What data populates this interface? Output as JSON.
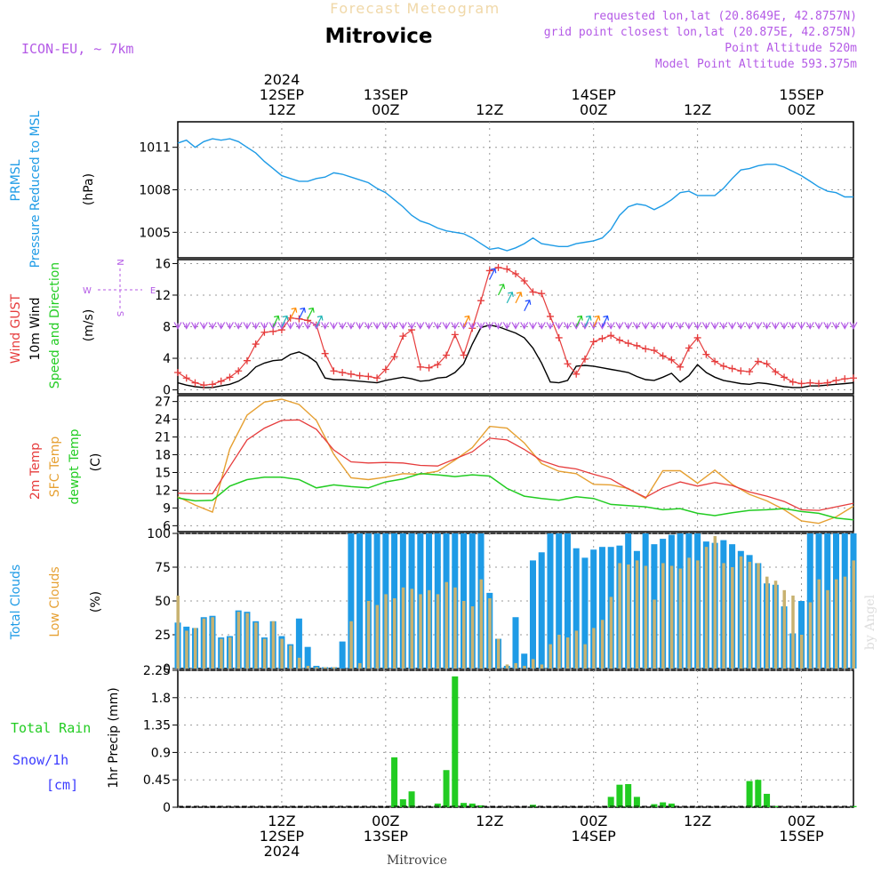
{
  "header": {
    "forecast_title": "Forecast Meteogram",
    "station": "Mitrovice",
    "model": "ICON-EU, ~ 7km",
    "requested": "requested lon,lat (20.8649E, 42.8757N)",
    "grid": "grid point closest lon,lat (20.875E, 42.875N)",
    "point_alt": "Point Altitude 520m",
    "model_alt": "Model Point Altitude 593.375m",
    "footer_station": "Mitrovice",
    "credit": "by Angel"
  },
  "colors": {
    "pressure": "#1E9BE6",
    "gust": "#E63C3C",
    "wind": "#000000",
    "arrow_dir": "#22CC22",
    "t2m": "#E63C3C",
    "tsfc": "#E6A032",
    "dewpt": "#22CC22",
    "total_clouds": "#1E9BE6",
    "low_clouds": "#C8B270",
    "rain": "#22CC22",
    "snow": "#3C3CFF",
    "purple": "#B45AE6",
    "grid": "#999999"
  },
  "time_axis": {
    "top_labels": [
      {
        "h": 12,
        "lines": [
          "2024",
          "12SEP",
          "12Z"
        ]
      },
      {
        "h": 24,
        "lines": [
          "13SEP",
          "00Z"
        ]
      },
      {
        "h": 36,
        "lines": [
          "12Z"
        ]
      },
      {
        "h": 48,
        "lines": [
          "14SEP",
          "00Z"
        ]
      },
      {
        "h": 60,
        "lines": [
          "12Z"
        ]
      },
      {
        "h": 72,
        "lines": [
          "15SEP",
          "00Z"
        ]
      }
    ],
    "bottom_labels": [
      {
        "h": 12,
        "lines": [
          "12Z",
          "12SEP",
          "2024"
        ]
      },
      {
        "h": 24,
        "lines": [
          "00Z",
          "13SEP"
        ]
      },
      {
        "h": 36,
        "lines": [
          "12Z"
        ]
      },
      {
        "h": 48,
        "lines": [
          "00Z",
          "14SEP"
        ]
      },
      {
        "h": 60,
        "lines": [
          "12Z"
        ]
      },
      {
        "h": 72,
        "lines": [
          "00Z",
          "15SEP"
        ]
      }
    ]
  },
  "panels": {
    "pressure": {
      "labels": [
        "PRMSL",
        "Pressure Reduced to MSL",
        "(hPa)"
      ],
      "ticks": [
        "1011",
        "1008",
        "1005"
      ]
    },
    "wind": {
      "labels": [
        "Wind GUST",
        "10m Wind",
        "Speed and Direction",
        "(m/s)"
      ],
      "ticks": [
        "16",
        "12",
        "8",
        "4",
        "0"
      ],
      "compass": {
        "n": "N",
        "s": "S",
        "w": "W",
        "e": "E"
      }
    },
    "temp": {
      "labels": [
        "2m Temp",
        "SFC Temp",
        "dewpt Temp",
        "(C)"
      ],
      "ticks": [
        "27",
        "24",
        "21",
        "18",
        "15",
        "12",
        "9",
        "6"
      ]
    },
    "clouds": {
      "labels": [
        "Total Clouds",
        "Low Clouds",
        "(%)"
      ],
      "ticks": [
        "100",
        "75",
        "50",
        "25",
        "0"
      ]
    },
    "precip": {
      "labels": [
        "Total Rain",
        "Snow/1h",
        "[cm]",
        "1hr Precip (mm)"
      ],
      "ticks": [
        "2.25",
        "1.8",
        "1.35",
        "0.9",
        "0.45",
        "0"
      ]
    }
  },
  "chart_data": {
    "type": "line",
    "x_unit": "hours from 12 SEP 2024 00Z",
    "x_range": [
      0,
      78
    ],
    "series": [
      {
        "name": "PRMSL",
        "ylim": [
          1003.2,
          1012.8
        ],
        "x": [
          0,
          1,
          2,
          3,
          4,
          5,
          6,
          7,
          8,
          9,
          10,
          11,
          12,
          13,
          14,
          15,
          16,
          17,
          18,
          19,
          20,
          21,
          22,
          23,
          24,
          25,
          26,
          27,
          28,
          29,
          30,
          31,
          32,
          33,
          34,
          35,
          36,
          37,
          38,
          39,
          40,
          41,
          42,
          43,
          44,
          45,
          46,
          47,
          48,
          49,
          50,
          51,
          52,
          53,
          54,
          55,
          56,
          57,
          58,
          59,
          60,
          61,
          62,
          63,
          64,
          65,
          66,
          67,
          68,
          69,
          70,
          71,
          72,
          73,
          74,
          75,
          76,
          77,
          78
        ],
        "values": [
          1011.3,
          1011.5,
          1011.0,
          1011.4,
          1011.6,
          1011.5,
          1011.6,
          1011.4,
          1011.0,
          1010.6,
          1010.0,
          1009.5,
          1009.0,
          1008.8,
          1008.6,
          1008.6,
          1008.8,
          1008.9,
          1009.2,
          1009.1,
          1008.9,
          1008.7,
          1008.5,
          1008.1,
          1007.8,
          1007.3,
          1006.8,
          1006.2,
          1005.8,
          1005.6,
          1005.3,
          1005.1,
          1005.0,
          1004.9,
          1004.6,
          1004.2,
          1003.8,
          1003.9,
          1003.7,
          1003.9,
          1004.2,
          1004.6,
          1004.2,
          1004.1,
          1004.0,
          1004.0,
          1004.2,
          1004.3,
          1004.4,
          1004.6,
          1005.2,
          1006.2,
          1006.8,
          1007.0,
          1006.9,
          1006.6,
          1006.9,
          1007.3,
          1007.8,
          1007.9,
          1007.6,
          1007.6,
          1007.6,
          1008.1,
          1008.8,
          1009.4,
          1009.5,
          1009.7,
          1009.8,
          1009.8,
          1009.6,
          1009.3,
          1009.0,
          1008.6,
          1008.2,
          1007.9,
          1007.8,
          1007.5,
          1007.5
        ]
      },
      {
        "name": "Wind GUST",
        "ylim": [
          -0.5,
          16.5
        ],
        "x": [
          0,
          1,
          2,
          3,
          4,
          5,
          6,
          7,
          8,
          9,
          10,
          11,
          12,
          13,
          14,
          15,
          16,
          17,
          18,
          19,
          20,
          21,
          22,
          23,
          24,
          25,
          26,
          27,
          28,
          29,
          30,
          31,
          32,
          33,
          34,
          35,
          36,
          37,
          38,
          39,
          40,
          41,
          42,
          43,
          44,
          45,
          46,
          47,
          48,
          49,
          50,
          51,
          52,
          53,
          54,
          55,
          56,
          57,
          58,
          59,
          60,
          61,
          62,
          63,
          64,
          65,
          66,
          67,
          68,
          69,
          70,
          71,
          72,
          73,
          74,
          75,
          76,
          77,
          78
        ],
        "values": [
          2.2,
          1.5,
          0.9,
          0.6,
          0.7,
          1.1,
          1.6,
          2.4,
          3.7,
          5.8,
          7.3,
          7.4,
          7.6,
          9.1,
          9.0,
          8.8,
          8.2,
          4.6,
          2.4,
          2.2,
          2.0,
          1.8,
          1.7,
          1.5,
          2.6,
          4.2,
          6.8,
          7.6,
          2.9,
          2.8,
          3.2,
          4.4,
          7.0,
          4.4,
          7.8,
          11.3,
          15.1,
          15.5,
          15.3,
          14.7,
          13.8,
          12.4,
          12.2,
          9.3,
          6.6,
          3.3,
          2.0,
          3.9,
          6.1,
          6.5,
          6.9,
          6.3,
          5.9,
          5.6,
          5.2,
          5.0,
          4.3,
          3.8,
          2.9,
          5.3,
          6.6,
          4.5,
          3.6,
          3.0,
          2.7,
          2.4,
          2.3,
          3.6,
          3.3,
          2.3,
          1.6,
          1.0,
          0.8,
          0.9,
          0.8,
          0.9,
          1.2,
          1.4,
          1.5
        ]
      },
      {
        "name": "10m Wind",
        "ylim": [
          -0.5,
          16.5
        ],
        "x": [
          0,
          1,
          2,
          3,
          4,
          5,
          6,
          7,
          8,
          9,
          10,
          11,
          12,
          13,
          14,
          15,
          16,
          17,
          18,
          19,
          20,
          21,
          22,
          23,
          24,
          25,
          26,
          27,
          28,
          29,
          30,
          31,
          32,
          33,
          34,
          35,
          36,
          37,
          38,
          39,
          40,
          41,
          42,
          43,
          44,
          45,
          46,
          47,
          48,
          49,
          50,
          51,
          52,
          53,
          54,
          55,
          56,
          57,
          58,
          59,
          60,
          61,
          62,
          63,
          64,
          65,
          66,
          67,
          68,
          69,
          70,
          71,
          72,
          73,
          74,
          75,
          76,
          77,
          78
        ],
        "values": [
          0.9,
          0.6,
          0.4,
          0.3,
          0.3,
          0.5,
          0.7,
          1.1,
          1.8,
          2.9,
          3.4,
          3.7,
          3.8,
          4.5,
          4.8,
          4.3,
          3.5,
          1.5,
          1.3,
          1.3,
          1.2,
          1.1,
          1.0,
          0.9,
          1.2,
          1.4,
          1.6,
          1.4,
          1.1,
          1.2,
          1.5,
          1.6,
          2.2,
          3.3,
          5.8,
          7.9,
          8.2,
          8.0,
          7.6,
          7.2,
          6.6,
          5.3,
          3.4,
          1.0,
          0.9,
          1.2,
          3.0,
          3.1,
          3.0,
          2.8,
          2.6,
          2.4,
          2.2,
          1.7,
          1.3,
          1.2,
          1.6,
          2.1,
          1.0,
          1.8,
          3.2,
          2.2,
          1.6,
          1.2,
          1.0,
          0.8,
          0.7,
          0.9,
          0.8,
          0.6,
          0.4,
          0.3,
          0.3,
          0.5,
          0.5,
          0.6,
          0.7,
          0.8,
          0.9
        ]
      },
      {
        "name": "2m Temp",
        "ylim": [
          5,
          28
        ],
        "x": [
          0,
          2,
          4,
          6,
          8,
          10,
          12,
          14,
          16,
          18,
          20,
          22,
          24,
          26,
          28,
          30,
          32,
          34,
          36,
          38,
          40,
          42,
          44,
          46,
          48,
          50,
          52,
          54,
          56,
          58,
          60,
          62,
          64,
          66,
          68,
          70,
          72,
          74,
          76,
          78
        ],
        "values": [
          11.5,
          11.4,
          11.4,
          16.0,
          20.5,
          22.5,
          23.8,
          23.9,
          22.3,
          18.8,
          16.8,
          16.6,
          16.7,
          16.6,
          16.2,
          16.1,
          17.3,
          18.5,
          20.8,
          20.5,
          18.9,
          17.0,
          16.0,
          15.6,
          14.7,
          13.9,
          12.2,
          10.8,
          12.4,
          13.4,
          12.7,
          13.3,
          12.8,
          11.7,
          11.0,
          10.1,
          8.7,
          8.6,
          9.2,
          9.8
        ]
      },
      {
        "name": "SFC Temp",
        "ylim": [
          5,
          28
        ],
        "x": [
          0,
          2,
          4,
          6,
          8,
          10,
          12,
          14,
          16,
          18,
          20,
          22,
          24,
          26,
          28,
          30,
          32,
          34,
          36,
          38,
          40,
          42,
          44,
          46,
          48,
          50,
          52,
          54,
          56,
          58,
          60,
          62,
          64,
          66,
          68,
          70,
          72,
          74,
          76,
          78
        ],
        "values": [
          10.9,
          9.5,
          8.3,
          19.0,
          24.7,
          26.9,
          27.4,
          26.5,
          23.8,
          18.1,
          14.1,
          13.8,
          14.2,
          14.8,
          14.7,
          15.2,
          17.1,
          19.2,
          22.8,
          22.5,
          20.0,
          16.5,
          15.2,
          14.8,
          13.0,
          12.9,
          12.3,
          10.6,
          15.3,
          15.3,
          13.2,
          15.4,
          13.0,
          11.3,
          10.2,
          8.7,
          6.8,
          6.4,
          7.5,
          9.3
        ]
      },
      {
        "name": "dewpt Temp",
        "ylim": [
          5,
          28
        ],
        "x": [
          0,
          2,
          4,
          6,
          8,
          10,
          12,
          14,
          16,
          18,
          20,
          22,
          24,
          26,
          28,
          30,
          32,
          34,
          36,
          38,
          40,
          42,
          44,
          46,
          48,
          50,
          52,
          54,
          56,
          58,
          60,
          62,
          64,
          66,
          68,
          70,
          72,
          74,
          76,
          78
        ],
        "values": [
          10.7,
          10.2,
          10.3,
          12.7,
          13.8,
          14.2,
          14.2,
          13.8,
          12.4,
          12.9,
          12.6,
          12.4,
          13.4,
          13.9,
          14.8,
          14.6,
          14.3,
          14.6,
          14.4,
          12.3,
          11.0,
          10.6,
          10.3,
          10.9,
          10.6,
          9.6,
          9.4,
          9.2,
          8.7,
          8.9,
          8.1,
          7.7,
          8.2,
          8.6,
          8.7,
          8.9,
          8.4,
          8.1,
          7.3,
          7.0
        ]
      },
      {
        "name": "Total Clouds",
        "type": "bar",
        "ylim": [
          0,
          100
        ],
        "x_start": 0,
        "values": [
          34,
          31,
          30,
          38,
          39,
          23,
          24,
          43,
          42,
          35,
          23,
          35,
          24,
          18,
          37,
          16,
          2,
          1,
          1,
          20,
          100,
          100,
          100,
          100,
          100,
          100,
          100,
          100,
          100,
          100,
          100,
          100,
          100,
          100,
          100,
          100,
          56,
          22,
          2,
          38,
          11,
          80,
          86,
          100,
          100,
          100,
          89,
          82,
          88,
          90,
          90,
          91,
          100,
          87,
          100,
          92,
          96,
          99,
          100,
          100,
          100,
          94,
          93,
          95,
          92,
          87,
          84,
          78,
          63,
          62,
          46,
          26,
          50,
          100,
          100,
          100,
          100,
          100,
          100
        ]
      },
      {
        "name": "Low Clouds",
        "type": "bar",
        "ylim": [
          0,
          100
        ],
        "x_start": 0,
        "values": [
          54,
          28,
          30,
          37,
          38,
          22,
          23,
          42,
          41,
          34,
          22,
          35,
          22,
          17,
          8,
          2,
          1,
          1,
          1,
          0,
          35,
          4,
          50,
          47,
          55,
          52,
          60,
          59,
          55,
          58,
          55,
          64,
          60,
          50,
          46,
          66,
          52,
          22,
          3,
          4,
          2,
          7,
          3,
          18,
          25,
          23,
          28,
          18,
          30,
          36,
          53,
          78,
          77,
          80,
          76,
          51,
          78,
          76,
          74,
          82,
          80,
          90,
          98,
          78,
          75,
          83,
          79,
          78,
          68,
          65,
          58,
          54,
          25,
          49,
          66,
          58,
          66,
          68,
          80
        ]
      },
      {
        "name": "Total Rain",
        "type": "bar",
        "ylim": [
          0,
          2.25
        ],
        "x_start": 0,
        "values": [
          0,
          0,
          0,
          0,
          0,
          0,
          0,
          0,
          0,
          0,
          0,
          0,
          0,
          0,
          0,
          0,
          0,
          0,
          0,
          0,
          0,
          0,
          0,
          0,
          0,
          0.82,
          0.13,
          0.26,
          0,
          0,
          0.06,
          0.61,
          2.15,
          0.07,
          0.06,
          0.03,
          0,
          0,
          0,
          0,
          0,
          0.04,
          0,
          0,
          0,
          0,
          0,
          0,
          0,
          0,
          0.17,
          0.37,
          0.38,
          0.17,
          0,
          0.05,
          0.08,
          0.06,
          0,
          0,
          0,
          0,
          0,
          0,
          0,
          0,
          0.43,
          0.45,
          0.22,
          0.02,
          0,
          0,
          0,
          0,
          0,
          0,
          0,
          0,
          0.02
        ]
      }
    ],
    "wind_barbs": {
      "arrows_upward_gust_color": [
        {
          "h": 11,
          "sp": 8
        },
        {
          "h": 12,
          "sp": 8
        },
        {
          "h": 13,
          "sp": 9
        },
        {
          "h": 14,
          "sp": 9
        },
        {
          "h": 15,
          "sp": 9
        },
        {
          "h": 16,
          "sp": 8
        },
        {
          "h": 33,
          "sp": 8
        },
        {
          "h": 36,
          "sp": 14
        },
        {
          "h": 37,
          "sp": 12
        },
        {
          "h": 38,
          "sp": 11
        },
        {
          "h": 39,
          "sp": 11
        },
        {
          "h": 40,
          "sp": 10
        },
        {
          "h": 46,
          "sp": 8
        },
        {
          "h": 47,
          "sp": 8
        },
        {
          "h": 48,
          "sp": 8
        },
        {
          "h": 49,
          "sp": 8
        }
      ]
    }
  }
}
